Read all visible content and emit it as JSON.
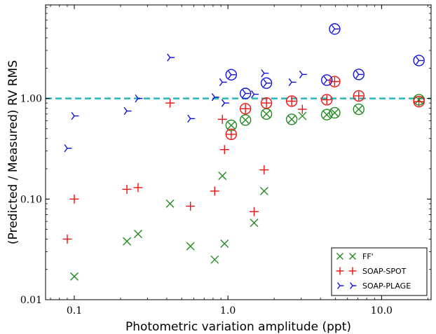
{
  "chart_data": {
    "type": "scatter",
    "xlabel": "Photometric variation amplitude (ppt)",
    "ylabel": "(Predicted / Measured) RV RMS",
    "xscale": "log",
    "yscale": "log",
    "xlim": [
      0.065,
      21
    ],
    "ylim": [
      0.01,
      8.5
    ],
    "xticks": [
      {
        "value": 0.1,
        "label": "0.1"
      },
      {
        "value": 1.0,
        "label": "1.0"
      },
      {
        "value": 10.0,
        "label": "10.0"
      }
    ],
    "yticks": [
      {
        "value": 0.01,
        "label": "0.01"
      },
      {
        "value": 0.1,
        "label": "0.10"
      },
      {
        "value": 1.0,
        "label": "1.00"
      }
    ],
    "reference_line": {
      "y": 1.0,
      "style": "dashed",
      "color": "#22bbbb"
    },
    "legend_position": "lower-right",
    "series": [
      {
        "name": "FF'",
        "marker": "x",
        "color": "#228B22",
        "points": [
          {
            "x": 0.1,
            "y": 0.017
          },
          {
            "x": 0.22,
            "y": 0.038
          },
          {
            "x": 0.26,
            "y": 0.045
          },
          {
            "x": 0.42,
            "y": 0.09
          },
          {
            "x": 0.57,
            "y": 0.034
          },
          {
            "x": 0.82,
            "y": 0.025
          },
          {
            "x": 0.92,
            "y": 0.17
          },
          {
            "x": 0.95,
            "y": 0.036
          },
          {
            "x": 1.48,
            "y": 0.058
          },
          {
            "x": 1.72,
            "y": 0.12
          },
          {
            "x": 1.05,
            "y": 0.54
          },
          {
            "x": 1.3,
            "y": 0.61
          },
          {
            "x": 1.78,
            "y": 0.7
          },
          {
            "x": 2.6,
            "y": 0.62
          },
          {
            "x": 3.05,
            "y": 0.67
          },
          {
            "x": 4.4,
            "y": 0.69
          },
          {
            "x": 4.95,
            "y": 0.72
          },
          {
            "x": 7.1,
            "y": 0.78
          },
          {
            "x": 17.5,
            "y": 0.97
          }
        ]
      },
      {
        "name": "SOAP-SPOT",
        "marker": "+",
        "color": "#ee1111",
        "points": [
          {
            "x": 0.09,
            "y": 0.04
          },
          {
            "x": 0.1,
            "y": 0.1
          },
          {
            "x": 0.22,
            "y": 0.125
          },
          {
            "x": 0.26,
            "y": 0.13
          },
          {
            "x": 0.42,
            "y": 0.9
          },
          {
            "x": 0.57,
            "y": 0.085
          },
          {
            "x": 0.82,
            "y": 0.12
          },
          {
            "x": 0.92,
            "y": 0.62
          },
          {
            "x": 0.95,
            "y": 0.31
          },
          {
            "x": 1.48,
            "y": 0.075
          },
          {
            "x": 1.72,
            "y": 0.195
          },
          {
            "x": 1.05,
            "y": 0.44
          },
          {
            "x": 1.3,
            "y": 0.79
          },
          {
            "x": 1.78,
            "y": 0.9
          },
          {
            "x": 2.6,
            "y": 0.94
          },
          {
            "x": 3.05,
            "y": 0.78
          },
          {
            "x": 4.4,
            "y": 0.97
          },
          {
            "x": 4.95,
            "y": 1.47
          },
          {
            "x": 7.1,
            "y": 1.06
          },
          {
            "x": 17.5,
            "y": 0.93
          }
        ]
      },
      {
        "name": "SOAP-PLAGE",
        "marker": "tri",
        "color": "#1111dd",
        "points": [
          {
            "x": 0.09,
            "y": 0.32
          },
          {
            "x": 0.1,
            "y": 0.67
          },
          {
            "x": 0.22,
            "y": 0.75
          },
          {
            "x": 0.26,
            "y": 1.0
          },
          {
            "x": 0.42,
            "y": 2.55
          },
          {
            "x": 0.57,
            "y": 0.63
          },
          {
            "x": 0.82,
            "y": 1.03
          },
          {
            "x": 0.92,
            "y": 1.45
          },
          {
            "x": 0.95,
            "y": 0.9
          },
          {
            "x": 1.05,
            "y": 1.72
          },
          {
            "x": 1.3,
            "y": 1.12
          },
          {
            "x": 1.48,
            "y": 1.1
          },
          {
            "x": 1.72,
            "y": 1.78
          },
          {
            "x": 1.78,
            "y": 1.42
          },
          {
            "x": 2.6,
            "y": 1.45
          },
          {
            "x": 3.05,
            "y": 1.73
          },
          {
            "x": 4.4,
            "y": 1.52
          },
          {
            "x": 4.95,
            "y": 4.9
          },
          {
            "x": 7.1,
            "y": 1.73
          },
          {
            "x": 17.5,
            "y": 2.38
          }
        ]
      }
    ],
    "circled_points": [
      {
        "x": 1.05,
        "y": 0.54,
        "color": "#228B22"
      },
      {
        "x": 1.3,
        "y": 0.61,
        "color": "#228B22"
      },
      {
        "x": 1.78,
        "y": 0.7,
        "color": "#228B22"
      },
      {
        "x": 2.6,
        "y": 0.62,
        "color": "#228B22"
      },
      {
        "x": 4.4,
        "y": 0.69,
        "color": "#228B22"
      },
      {
        "x": 4.95,
        "y": 0.72,
        "color": "#228B22"
      },
      {
        "x": 7.1,
        "y": 0.78,
        "color": "#228B22"
      },
      {
        "x": 17.5,
        "y": 0.97,
        "color": "#228B22"
      },
      {
        "x": 1.05,
        "y": 0.44,
        "color": "#ee1111"
      },
      {
        "x": 1.3,
        "y": 0.79,
        "color": "#ee1111"
      },
      {
        "x": 1.78,
        "y": 0.9,
        "color": "#ee1111"
      },
      {
        "x": 2.6,
        "y": 0.94,
        "color": "#ee1111"
      },
      {
        "x": 4.4,
        "y": 0.97,
        "color": "#ee1111"
      },
      {
        "x": 4.95,
        "y": 1.47,
        "color": "#ee1111"
      },
      {
        "x": 7.1,
        "y": 1.06,
        "color": "#ee1111"
      },
      {
        "x": 17.5,
        "y": 0.93,
        "color": "#ee1111"
      },
      {
        "x": 1.05,
        "y": 1.72,
        "color": "#1111dd"
      },
      {
        "x": 1.3,
        "y": 1.12,
        "color": "#1111dd"
      },
      {
        "x": 1.78,
        "y": 1.42,
        "color": "#1111dd"
      },
      {
        "x": 4.4,
        "y": 1.52,
        "color": "#1111dd"
      },
      {
        "x": 4.95,
        "y": 4.9,
        "color": "#1111dd"
      },
      {
        "x": 7.1,
        "y": 1.73,
        "color": "#1111dd"
      },
      {
        "x": 17.5,
        "y": 2.38,
        "color": "#1111dd"
      }
    ]
  }
}
